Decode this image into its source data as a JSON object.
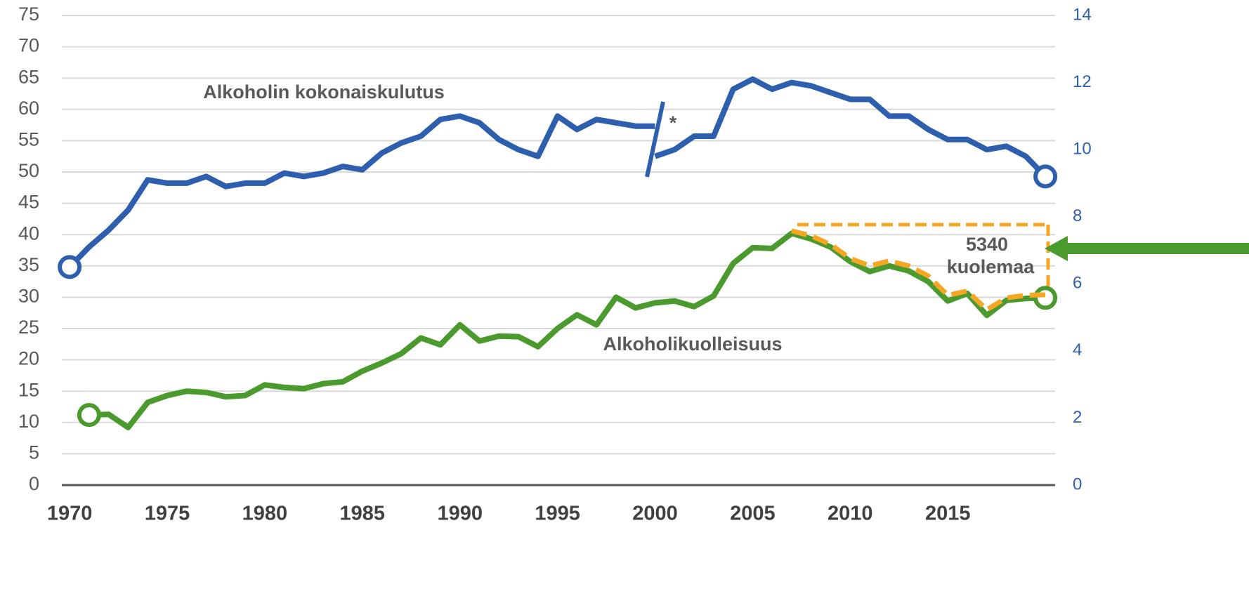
{
  "chart_data": {
    "type": "line",
    "annotations": [
      "Alkoholin kokonaiskulutus",
      "Alkoholikuolleisuus",
      "*",
      "5340",
      "kuolemaa"
    ],
    "xlim": [
      1969.6,
      2020.5
    ],
    "xticks": [
      1970,
      1975,
      1980,
      1985,
      1990,
      1995,
      2000,
      2005,
      2010,
      2015
    ],
    "ylim": [
      0,
      75
    ],
    "yticks": [
      0,
      5,
      10,
      15,
      20,
      25,
      30,
      35,
      40,
      45,
      50,
      55,
      60,
      65,
      70,
      75
    ],
    "y2lim": [
      0,
      14
    ],
    "y2ticks": [
      0,
      2,
      4,
      6,
      8,
      10,
      12,
      14
    ],
    "grid": true,
    "series": [
      {
        "color": "#2e5fae",
        "axis": "y2",
        "dashed": false,
        "endpoint_markers": true,
        "x": [
          1970,
          1971,
          1972,
          1973,
          1974,
          1975,
          1976,
          1977,
          1978,
          1979,
          1980,
          1981,
          1982,
          1983,
          1984,
          1985,
          1986,
          1987,
          1988,
          1989,
          1990,
          1991,
          1992,
          1993,
          1994,
          1995,
          1996,
          1997,
          1998,
          1999,
          2000,
          2000,
          2000,
          2001,
          2002,
          2003,
          2004,
          2005,
          2006,
          2007,
          2008,
          2009,
          2010,
          2011,
          2012,
          2013,
          2014,
          2015,
          2016,
          2017,
          2018,
          2019,
          2020
        ],
        "values": [
          6.5,
          7.1,
          7.6,
          8.2,
          9.1,
          9.0,
          9.0,
          9.2,
          8.9,
          9.0,
          9.0,
          9.3,
          9.2,
          9.3,
          9.5,
          9.4,
          9.9,
          10.2,
          10.4,
          10.9,
          11.0,
          10.8,
          10.3,
          10.0,
          9.8,
          11.0,
          10.6,
          10.9,
          10.8,
          10.7,
          10.7,
          null,
          9.8,
          10.0,
          10.4,
          10.4,
          11.8,
          12.1,
          11.8,
          12.0,
          11.9,
          11.7,
          11.5,
          11.5,
          11.0,
          11.0,
          10.6,
          10.3,
          10.3,
          10.0,
          10.1,
          9.8,
          9.2
        ]
      },
      {
        "color": "#4a9a2e",
        "axis": "y",
        "dashed": false,
        "endpoint_markers": true,
        "x": [
          1971,
          1972,
          1973,
          1974,
          1975,
          1976,
          1977,
          1978,
          1979,
          1980,
          1981,
          1982,
          1983,
          1984,
          1985,
          1986,
          1987,
          1988,
          1989,
          1990,
          1991,
          1992,
          1993,
          1994,
          1995,
          1996,
          1997,
          1998,
          1999,
          2000,
          2001,
          2002,
          2003,
          2004,
          2005,
          2006,
          2007,
          2008,
          2009,
          2010,
          2011,
          2012,
          2013,
          2014,
          2015,
          2016,
          2017,
          2018,
          2019,
          2020
        ],
        "values": [
          11.2,
          11.3,
          9.2,
          13.2,
          14.3,
          15,
          14.8,
          14.1,
          14.3,
          16,
          15.6,
          15.4,
          16.2,
          16.5,
          18.2,
          19.5,
          21,
          23.5,
          22.4,
          25.6,
          23,
          23.8,
          23.7,
          22.1,
          25,
          27.2,
          25.6,
          30,
          28.3,
          29.1,
          29.4,
          28.5,
          30.2,
          35.4,
          37.9,
          37.8,
          40.2,
          39.3,
          38,
          35.7,
          34.1,
          35,
          34.2,
          32.5,
          29.4,
          30.6,
          27.1,
          29.5,
          29.8,
          29.9
        ]
      },
      {
        "color": "#f5a623",
        "axis": "y",
        "dashed": true,
        "endpoint_markers": false,
        "x": [
          2007,
          2008,
          2009,
          2010,
          2011,
          2012,
          2013,
          2014,
          2015,
          2016,
          2017,
          2018,
          2019,
          2020
        ],
        "values": [
          40.6,
          39.8,
          38.4,
          36.2,
          35,
          35.8,
          35,
          33.4,
          30.3,
          31,
          28,
          29.9,
          30.3,
          30.4
        ]
      }
    ]
  }
}
